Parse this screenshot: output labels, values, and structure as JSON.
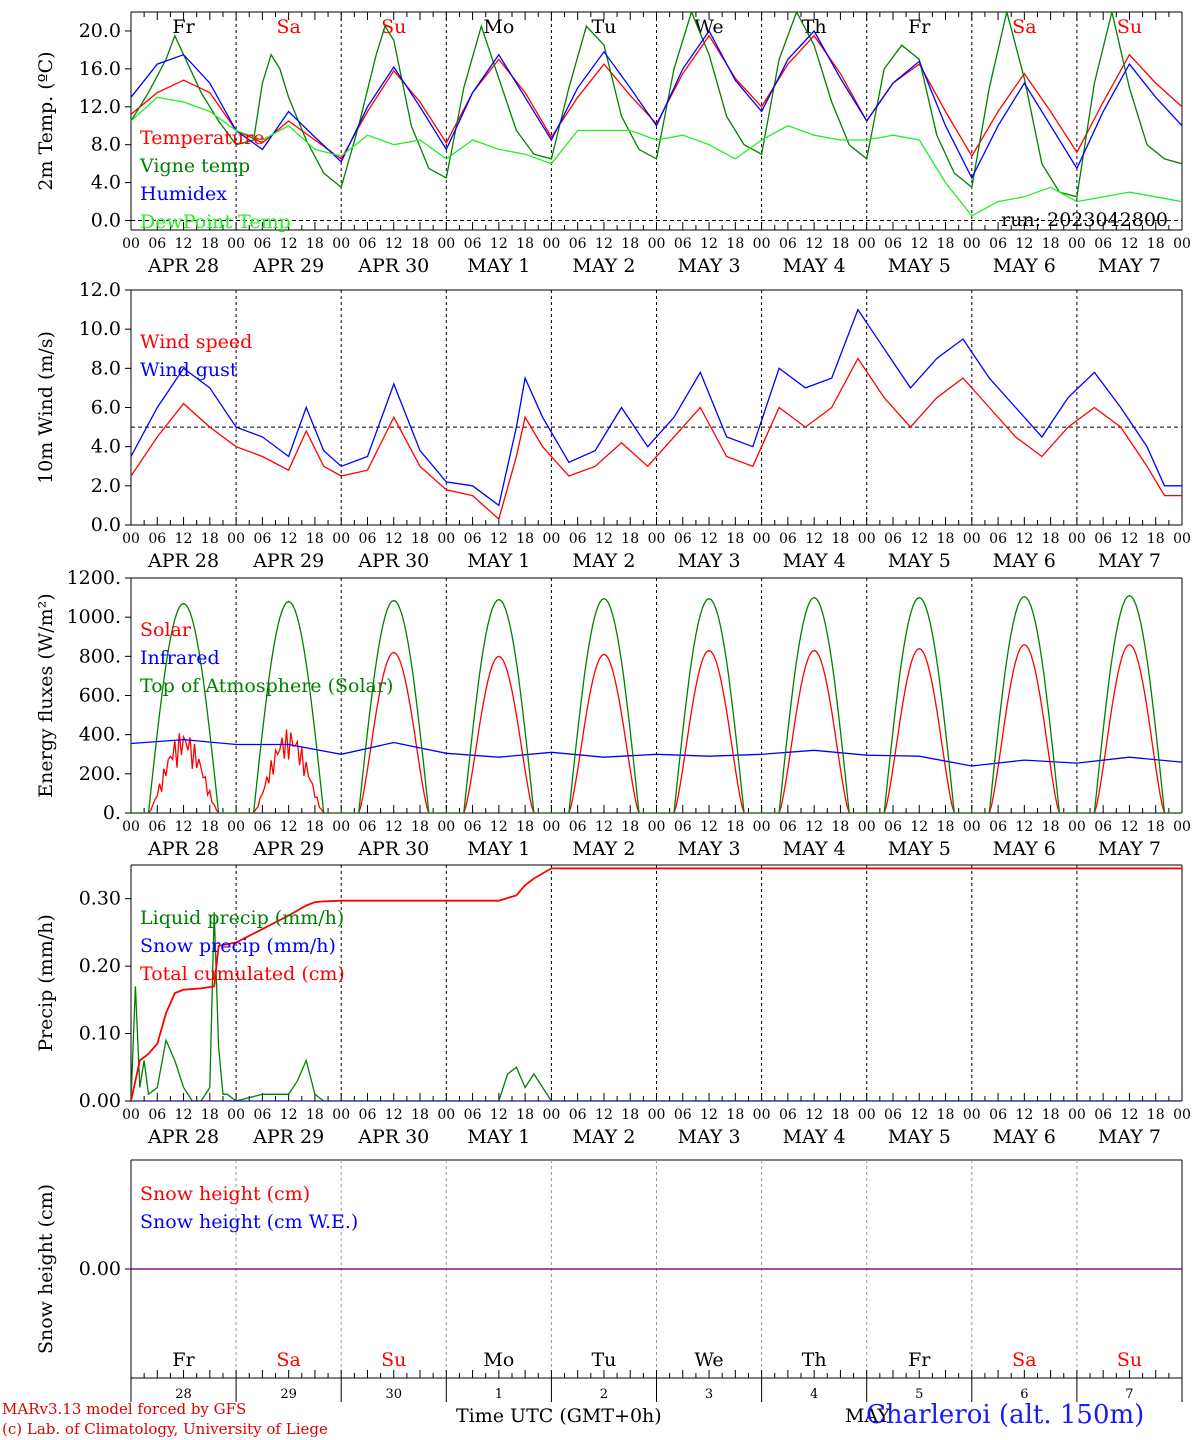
{
  "run_label": "run: 2023042800",
  "hour_ticks": [
    "00",
    "06",
    "12",
    "18"
  ],
  "end_hour": "00",
  "day_names": [
    "Fr",
    "Sa",
    "Su",
    "Mo",
    "Tu",
    "We",
    "Th",
    "Fr",
    "Sa",
    "Su"
  ],
  "weekend_flags": [
    false,
    true,
    true,
    false,
    false,
    false,
    false,
    false,
    true,
    true
  ],
  "date_labels": [
    "APR 28",
    "APR 29",
    "APR 30",
    "MAY  1",
    "MAY  2",
    "MAY  3",
    "MAY  4",
    "MAY  5",
    "MAY  6",
    "MAY  7"
  ],
  "bottom_day_numbers": [
    "28",
    "29",
    "30",
    "1",
    "2",
    "3",
    "4",
    "5",
    "6",
    "7"
  ],
  "month_label": "MAY",
  "x_title": "Time UTC (GMT+0h)",
  "station": "Charleroi (alt. 150m)",
  "credit_lines": [
    "MARv3.13 model forced by GFS",
    "(c) Lab. of Climatology, University of Liege"
  ],
  "colors": {
    "red": "#ff0000",
    "darkgreen": "#008000",
    "blue": "#0000ff",
    "lightgreen": "#22ee22",
    "purple": "#800080",
    "station": "#1a1aff"
  },
  "chart_data": [
    {
      "type": "line",
      "ylabel": "2m Temp. (ºC)",
      "ylim": [
        -1,
        22
      ],
      "yticks": [
        "0.0",
        "4.0",
        "8.0",
        "12.0",
        "16.0",
        "20.0"
      ],
      "ytick_values": [
        0,
        4,
        8,
        12,
        16,
        20
      ],
      "x_unit": "hours since APR 28 00 UTC",
      "xlim": [
        0,
        240
      ],
      "reference_line": 0,
      "show_day_names": true,
      "series": [
        {
          "name": "Temperature",
          "color": "#ff0000",
          "x": [
            0,
            6,
            12,
            18,
            24,
            30,
            36,
            42,
            48,
            54,
            60,
            66,
            72,
            78,
            84,
            90,
            96,
            102,
            108,
            114,
            120,
            126,
            132,
            138,
            144,
            150,
            156,
            162,
            168,
            174,
            180,
            186,
            192,
            198,
            204,
            210,
            216,
            222,
            228,
            234,
            240
          ],
          "values": [
            11.2,
            13.5,
            14.8,
            13.5,
            9.5,
            8.2,
            10.5,
            8.5,
            6.5,
            11.5,
            15.8,
            12.5,
            8.2,
            13.5,
            17.0,
            13.5,
            8.8,
            13.0,
            16.5,
            13.2,
            10.2,
            15.5,
            19.5,
            15.0,
            12.0,
            16.5,
            19.5,
            15.5,
            10.5,
            14.5,
            16.5,
            11.5,
            6.8,
            11.5,
            15.5,
            11.5,
            7.2,
            12.5,
            17.5,
            14.5,
            12.0
          ]
        },
        {
          "name": "Vigne temp",
          "color": "#008000",
          "x": [
            0,
            4,
            8,
            10,
            12,
            16,
            20,
            24,
            28,
            30,
            32,
            34,
            36,
            40,
            44,
            48,
            52,
            56,
            58,
            60,
            64,
            68,
            72,
            76,
            80,
            84,
            88,
            92,
            96,
            100,
            104,
            108,
            112,
            116,
            120,
            124,
            128,
            132,
            136,
            140,
            144,
            148,
            152,
            156,
            160,
            164,
            168,
            172,
            176,
            180,
            184,
            188,
            192,
            196,
            200,
            204,
            208,
            212,
            216,
            220,
            224,
            228,
            232,
            236,
            240
          ],
          "values": [
            10.5,
            13.5,
            17.0,
            19.5,
            17.5,
            13.5,
            10.5,
            8.0,
            8.5,
            14.5,
            17.5,
            16.0,
            13.0,
            8.5,
            5.0,
            3.5,
            10.0,
            17.5,
            20.5,
            19.0,
            10.0,
            5.5,
            4.5,
            14.0,
            20.5,
            15.0,
            9.5,
            7.0,
            6.5,
            14.0,
            20.5,
            18.5,
            11.0,
            7.5,
            6.5,
            16.0,
            22.0,
            17.5,
            11.0,
            8.0,
            7.0,
            17.0,
            22.0,
            18.5,
            12.5,
            8.0,
            6.5,
            16.0,
            18.5,
            17.0,
            9.0,
            5.0,
            3.5,
            14.0,
            22.0,
            15.0,
            6.0,
            3.0,
            2.5,
            14.5,
            22.0,
            14.0,
            8.0,
            6.5,
            6.0
          ]
        },
        {
          "name": "Humidex",
          "color": "#0000ff",
          "x": [
            0,
            6,
            12,
            18,
            24,
            30,
            36,
            42,
            48,
            54,
            60,
            66,
            72,
            78,
            84,
            90,
            96,
            102,
            108,
            114,
            120,
            126,
            132,
            138,
            144,
            150,
            156,
            162,
            168,
            174,
            180,
            186,
            192,
            198,
            204,
            210,
            216,
            222,
            228,
            234,
            240
          ],
          "values": [
            13.0,
            16.5,
            17.5,
            14.5,
            9.5,
            7.5,
            11.5,
            8.8,
            6.2,
            12.0,
            16.2,
            12.0,
            7.5,
            13.5,
            17.5,
            13.0,
            8.5,
            14.0,
            17.8,
            14.0,
            10.0,
            16.0,
            20.0,
            14.8,
            11.5,
            17.0,
            20.0,
            15.0,
            10.5,
            14.5,
            16.8,
            10.0,
            4.5,
            10.0,
            14.5,
            10.0,
            5.5,
            11.5,
            16.5,
            13.0,
            10.0
          ]
        },
        {
          "name": "DewPoint Temp",
          "color": "#22ee22",
          "x": [
            0,
            6,
            12,
            18,
            24,
            30,
            36,
            42,
            48,
            54,
            60,
            66,
            72,
            78,
            84,
            90,
            96,
            102,
            108,
            114,
            120,
            126,
            132,
            138,
            144,
            150,
            156,
            162,
            168,
            174,
            180,
            186,
            192,
            198,
            204,
            210,
            216,
            222,
            228,
            234,
            240
          ],
          "values": [
            10.5,
            13.0,
            12.5,
            11.5,
            9.5,
            8.5,
            10.0,
            7.5,
            6.8,
            9.0,
            8.0,
            8.5,
            6.5,
            8.5,
            7.5,
            7.0,
            6.0,
            9.5,
            9.5,
            9.5,
            8.5,
            9.0,
            8.0,
            6.5,
            8.5,
            10.0,
            9.0,
            8.5,
            8.5,
            9.0,
            8.5,
            4.0,
            0.5,
            2.0,
            2.5,
            3.5,
            2.0,
            2.5,
            3.0,
            2.5,
            2.0
          ]
        }
      ]
    },
    {
      "type": "line",
      "ylabel": "10m Wind (m/s)",
      "ylim": [
        0,
        12
      ],
      "yticks": [
        "0.0",
        "2.0",
        "4.0",
        "6.0",
        "8.0",
        "10.0",
        "12.0"
      ],
      "ytick_values": [
        0,
        2,
        4,
        6,
        8,
        10,
        12
      ],
      "x_unit": "hours since APR 28 00 UTC",
      "xlim": [
        0,
        240
      ],
      "reference_line": 5,
      "series": [
        {
          "name": "Wind speed",
          "color": "#ff0000",
          "x": [
            0,
            6,
            12,
            18,
            24,
            30,
            36,
            40,
            44,
            48,
            54,
            60,
            66,
            72,
            78,
            84,
            88,
            90,
            94,
            100,
            106,
            112,
            118,
            124,
            130,
            136,
            142,
            148,
            154,
            160,
            166,
            172,
            178,
            184,
            190,
            196,
            202,
            208,
            214,
            220,
            226,
            232,
            236,
            240
          ],
          "values": [
            2.5,
            4.5,
            6.2,
            5.0,
            4.0,
            3.5,
            2.8,
            4.8,
            3.0,
            2.5,
            2.8,
            5.5,
            3.0,
            1.8,
            1.5,
            0.3,
            3.5,
            5.5,
            4.0,
            2.5,
            3.0,
            4.2,
            3.0,
            4.5,
            6.0,
            3.5,
            3.0,
            6.0,
            5.0,
            6.0,
            8.5,
            6.5,
            5.0,
            6.5,
            7.5,
            6.0,
            4.5,
            3.5,
            5.0,
            6.0,
            5.0,
            3.0,
            1.5,
            1.5
          ]
        },
        {
          "name": "Wind gust",
          "color": "#0000ff",
          "x": [
            0,
            6,
            12,
            18,
            24,
            30,
            36,
            40,
            44,
            48,
            54,
            60,
            66,
            72,
            78,
            84,
            88,
            90,
            94,
            100,
            106,
            112,
            118,
            124,
            130,
            136,
            142,
            148,
            154,
            160,
            166,
            172,
            178,
            184,
            190,
            196,
            202,
            208,
            214,
            220,
            226,
            232,
            236,
            240
          ],
          "values": [
            3.5,
            6.0,
            8.0,
            7.0,
            5.0,
            4.5,
            3.5,
            6.0,
            3.8,
            3.0,
            3.5,
            7.2,
            3.8,
            2.2,
            2.0,
            1.0,
            5.0,
            7.5,
            5.5,
            3.2,
            3.8,
            6.0,
            4.0,
            5.5,
            7.8,
            4.5,
            4.0,
            8.0,
            7.0,
            7.5,
            11.0,
            9.0,
            7.0,
            8.5,
            9.5,
            7.5,
            6.0,
            4.5,
            6.5,
            7.8,
            6.0,
            4.0,
            2.0,
            2.0
          ]
        }
      ]
    },
    {
      "type": "line",
      "ylabel": "Energy fluxes (W/m²)",
      "ylim": [
        0,
        1200
      ],
      "yticks": [
        "0.",
        "200.",
        "400.",
        "600.",
        "800.",
        "1000.",
        "1200."
      ],
      "ytick_values": [
        0,
        200,
        400,
        600,
        800,
        1000,
        1200
      ],
      "x_unit": "hours since APR 28 00 UTC",
      "xlim": [
        0,
        240
      ],
      "series": [
        {
          "name": "Solar",
          "color": "#ff0000",
          "daily_peak": [
            420,
            430,
            820,
            800,
            810,
            830,
            830,
            840,
            860,
            860
          ]
        },
        {
          "name": "Infrared",
          "color": "#0000ff",
          "x": [
            0,
            12,
            24,
            36,
            48,
            60,
            72,
            84,
            96,
            108,
            120,
            132,
            144,
            156,
            168,
            180,
            192,
            204,
            216,
            228,
            240
          ],
          "values": [
            355,
            375,
            350,
            350,
            300,
            360,
            305,
            285,
            310,
            285,
            300,
            290,
            300,
            320,
            295,
            290,
            240,
            270,
            255,
            285,
            260
          ]
        },
        {
          "name": "Top of Atmosphere (Solar)",
          "color": "#008000",
          "daily_peak": [
            1070,
            1080,
            1085,
            1090,
            1095,
            1095,
            1100,
            1100,
            1105,
            1110
          ]
        }
      ]
    },
    {
      "type": "line",
      "ylabel": "Precip (mm/h)",
      "ylim": [
        0,
        0.35
      ],
      "yticks": [
        "0.00",
        "0.10",
        "0.20",
        "0.30"
      ],
      "ytick_values": [
        0,
        0.1,
        0.2,
        0.3
      ],
      "x_unit": "hours since APR 28 00 UTC",
      "xlim": [
        0,
        240
      ],
      "series": [
        {
          "name": "Liquid precip (mm/h)",
          "color": "#008000",
          "x": [
            0,
            1,
            2,
            3,
            4,
            6,
            8,
            10,
            12,
            14,
            16,
            18,
            19,
            20,
            21,
            22,
            24,
            30,
            36,
            38,
            40,
            42,
            44,
            48,
            60,
            72,
            84,
            86,
            88,
            90,
            92,
            94,
            96,
            100,
            120,
            240
          ],
          "values": [
            0,
            0.17,
            0.02,
            0.06,
            0.01,
            0.02,
            0.09,
            0.06,
            0.02,
            0,
            0,
            0.02,
            0.28,
            0.08,
            0.01,
            0.01,
            0,
            0.01,
            0.01,
            0.03,
            0.06,
            0.01,
            0,
            0,
            0,
            0,
            0,
            0.04,
            0.05,
            0.02,
            0.04,
            0.02,
            0,
            0,
            0,
            0
          ]
        },
        {
          "name": "Snow precip (mm/h)",
          "color": "#0000ff",
          "x": [
            0,
            240
          ],
          "values": [
            0,
            0
          ]
        },
        {
          "name": "Total cumulated (cm)",
          "color": "#ff0000",
          "x": [
            0,
            2,
            4,
            6,
            8,
            10,
            12,
            16,
            19,
            20,
            24,
            30,
            36,
            40,
            42,
            44,
            48,
            60,
            72,
            84,
            88,
            90,
            92,
            96,
            240
          ],
          "values": [
            0,
            0.06,
            0.07,
            0.085,
            0.13,
            0.16,
            0.165,
            0.167,
            0.17,
            0.23,
            0.235,
            0.255,
            0.275,
            0.29,
            0.295,
            0.296,
            0.297,
            0.297,
            0.297,
            0.297,
            0.305,
            0.32,
            0.33,
            0.345,
            0.345
          ]
        }
      ]
    },
    {
      "type": "line",
      "ylabel": "Snow height (cm)",
      "ylim": [
        -1,
        1
      ],
      "yticks": [
        "0.00"
      ],
      "ytick_values": [
        0
      ],
      "x_unit": "hours since APR 28 00 UTC",
      "xlim": [
        0,
        240
      ],
      "series": [
        {
          "name": "Snow height (cm)",
          "color": "#ff0000",
          "x": [
            0,
            240
          ],
          "values": [
            0,
            0
          ]
        },
        {
          "name": "Snow height (cm W.E.)",
          "color": "#0000ff",
          "x": [
            0,
            240
          ],
          "values": [
            0,
            0
          ]
        }
      ]
    }
  ]
}
